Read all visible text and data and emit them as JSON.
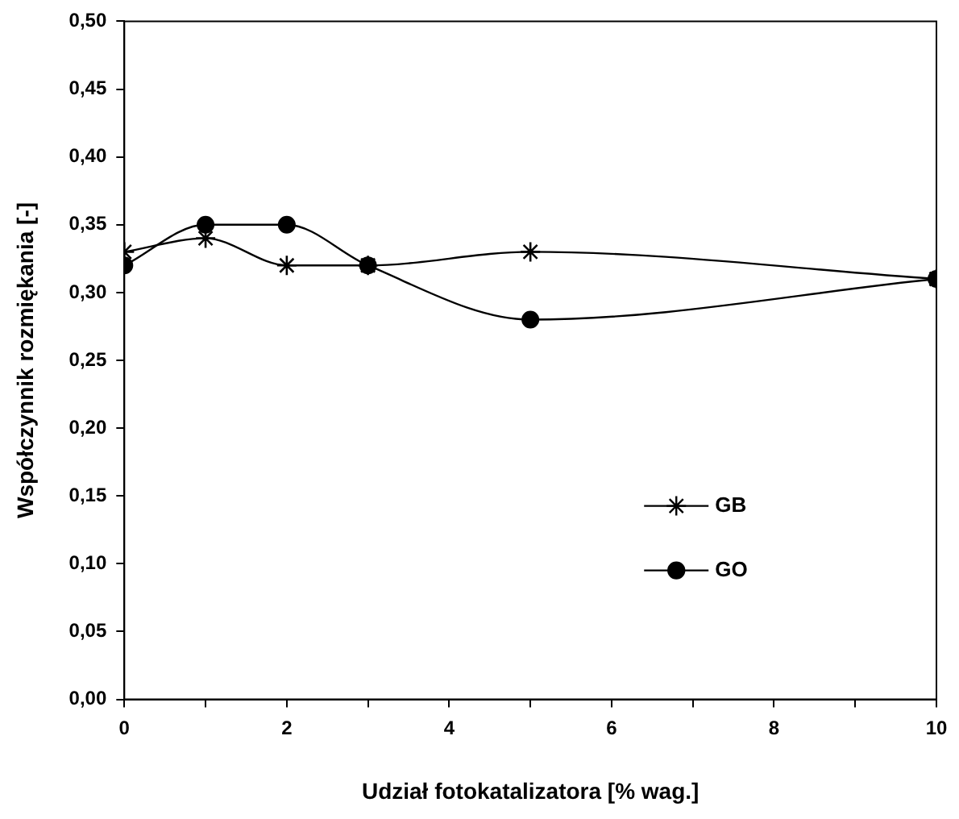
{
  "chart_data": {
    "type": "line",
    "xlabel": "Udział fotokatalizatora [% wag.]",
    "ylabel": "Współczynnik rozmiękania [-]",
    "x": [
      0,
      1,
      2,
      3,
      5,
      10
    ],
    "series": [
      {
        "name": "GB",
        "color": "#000000",
        "marker": "cross",
        "values": [
          0.33,
          0.34,
          0.32,
          0.32,
          0.33,
          0.31
        ]
      },
      {
        "name": "GO",
        "color": "#000000",
        "marker": "circle",
        "values": [
          0.32,
          0.35,
          0.35,
          0.32,
          0.28,
          0.31
        ]
      }
    ],
    "xlim": [
      0,
      10
    ],
    "xticks": [
      0,
      {
        "value": 1,
        "label": null
      },
      2,
      {
        "value": 3,
        "label": null
      },
      4,
      {
        "value": 5,
        "label": null
      },
      6,
      {
        "value": 7,
        "label": null
      },
      8,
      {
        "value": 9,
        "label": null
      },
      10
    ],
    "ylim": [
      0,
      0.5
    ],
    "yticks": [
      {
        "value": 0,
        "label": "0,00"
      },
      {
        "value": 0.05,
        "label": "0,05"
      },
      {
        "value": 0.1,
        "label": "0,10"
      },
      {
        "value": 0.15,
        "label": "0,15"
      },
      {
        "value": 0.2,
        "label": "0,20"
      },
      {
        "value": 0.25,
        "label": "0,25"
      },
      {
        "value": 0.3,
        "label": "0,30"
      },
      {
        "value": 0.35,
        "label": "0,35"
      },
      {
        "value": 0.4,
        "label": "0,40"
      },
      {
        "value": 0.45,
        "label": "0,45"
      },
      {
        "value": 0.5,
        "label": "0,50"
      }
    ],
    "grid": false,
    "legend": "bottom right"
  }
}
